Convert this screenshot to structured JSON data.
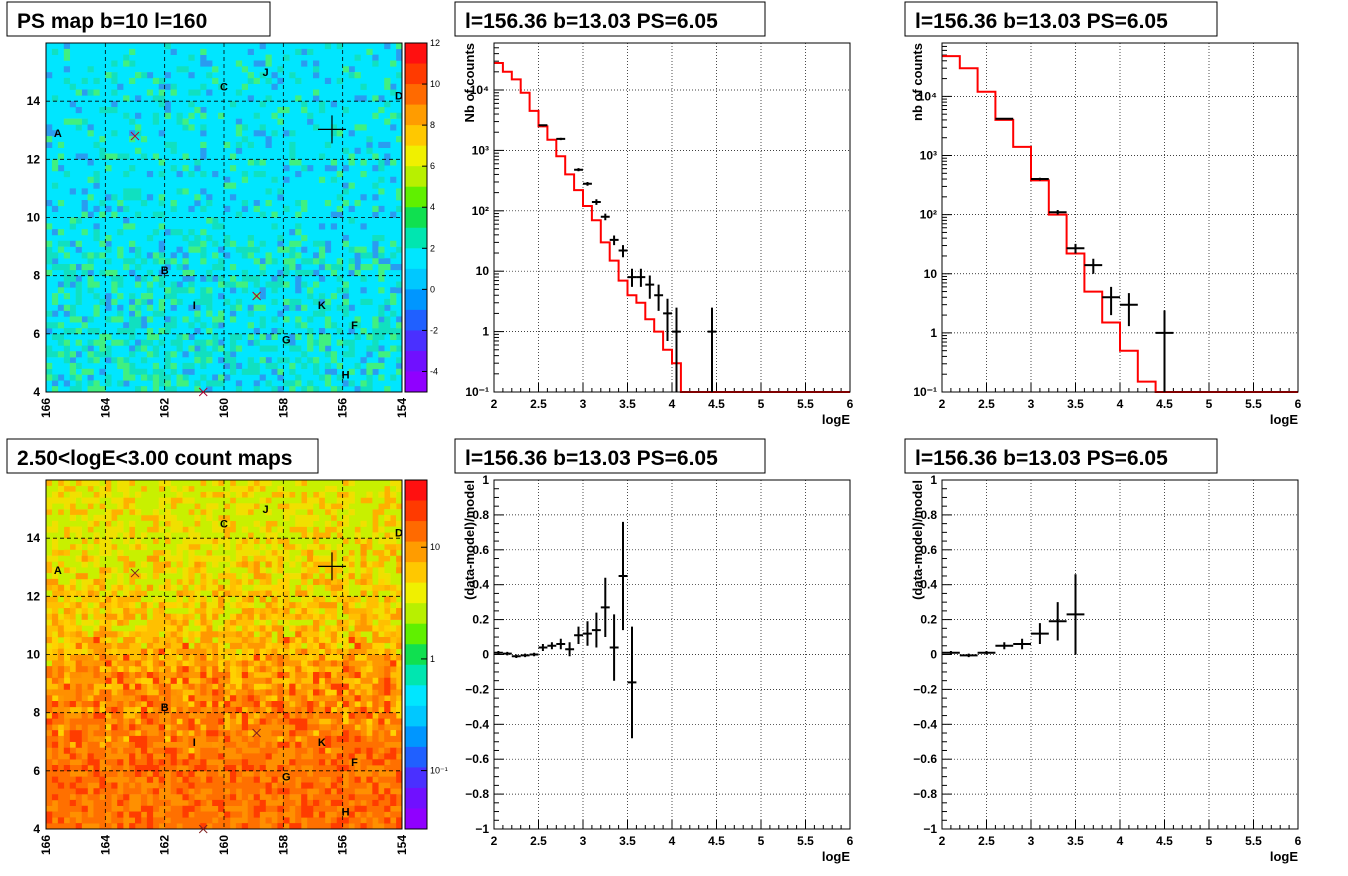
{
  "colors": {
    "model_line": "#ff0000",
    "data_points": "#000000",
    "grid": "#000000",
    "map_background": "#00e6ff",
    "count_map_background": "#ff8c00"
  },
  "chart_data": [
    {
      "type": "heatmap",
      "title": "PS map b=10 l=160",
      "xlim": [
        166,
        154
      ],
      "ylim": [
        4,
        16
      ],
      "xticks": [
        "166",
        "164",
        "162",
        "160",
        "158",
        "156",
        "154"
      ],
      "yticks": [
        "4",
        "6",
        "8",
        "10",
        "12",
        "14"
      ],
      "colorbar": {
        "min": -5,
        "max": 12,
        "ticks": [
          "12",
          "10",
          "8",
          "6",
          "4",
          "2",
          "0",
          "-2",
          "-4"
        ]
      },
      "source_labels": [
        {
          "label": "A",
          "l": 165.6,
          "b": 12.9
        },
        {
          "label": "C",
          "l": 160.0,
          "b": 14.5
        },
        {
          "label": "J",
          "l": 158.6,
          "b": 15.0
        },
        {
          "label": "D",
          "l": 154.1,
          "b": 14.2
        },
        {
          "label": "B",
          "l": 162.0,
          "b": 8.2
        },
        {
          "label": "I",
          "l": 161.0,
          "b": 7.0
        },
        {
          "label": "K",
          "l": 156.7,
          "b": 7.0
        },
        {
          "label": "F",
          "l": 155.6,
          "b": 6.3
        },
        {
          "label": "G",
          "l": 157.9,
          "b": 5.8
        },
        {
          "label": "H",
          "l": 155.9,
          "b": 4.6
        }
      ],
      "x_markers": [
        {
          "l": 163.0,
          "b": 12.8
        },
        {
          "l": 158.9,
          "b": 7.3
        },
        {
          "l": 160.7,
          "b": 4.0
        }
      ],
      "target": {
        "l": 156.36,
        "b": 13.03
      }
    },
    {
      "type": "line",
      "title": "l=156.36 b=13.03 PS=6.05",
      "xlabel": "logE",
      "ylabel": "Nb of counts",
      "xlim": [
        2,
        6
      ],
      "ylim": [
        0.1,
        60000
      ],
      "yscale": "log",
      "xticks": [
        "2",
        "2.5",
        "3",
        "3.5",
        "4",
        "4.5",
        "5",
        "5.5",
        "6"
      ],
      "yticks": [
        {
          "v": 0.1,
          "t": "10⁻¹"
        },
        {
          "v": 1,
          "t": "1"
        },
        {
          "v": 10,
          "t": "10"
        },
        {
          "v": 100,
          "t": "10²"
        },
        {
          "v": 1000,
          "t": "10³"
        },
        {
          "v": 10000,
          "t": "10⁴"
        }
      ],
      "grid": true,
      "model_edges": [
        2.0,
        2.1,
        2.2,
        2.3,
        2.4,
        2.5,
        2.6,
        2.7,
        2.8,
        2.9,
        3.0,
        3.1,
        3.2,
        3.3,
        3.4,
        3.5,
        3.6,
        3.7,
        3.8,
        3.9,
        4.0,
        4.1,
        4.2,
        6.0
      ],
      "model_values": [
        28000,
        20000,
        15000,
        9000,
        4500,
        2500,
        1500,
        800,
        400,
        220,
        120,
        70,
        30,
        15,
        7,
        4,
        3,
        1.6,
        1.0,
        0.5,
        0.3,
        0.1,
        0.1
      ],
      "points": [
        {
          "x": 2.55,
          "y": 2600,
          "xerr": 0.05,
          "ylo": 2500,
          "yhi": 2700
        },
        {
          "x": 2.75,
          "y": 1550,
          "xerr": 0.05,
          "ylo": 1480,
          "yhi": 1620
        },
        {
          "x": 2.95,
          "y": 480,
          "xerr": 0.05,
          "ylo": 450,
          "yhi": 510
        },
        {
          "x": 3.05,
          "y": 280,
          "xerr": 0.05,
          "ylo": 260,
          "yhi": 300
        },
        {
          "x": 3.15,
          "y": 140,
          "xerr": 0.05,
          "ylo": 125,
          "yhi": 155
        },
        {
          "x": 3.25,
          "y": 80,
          "xerr": 0.05,
          "ylo": 70,
          "yhi": 90
        },
        {
          "x": 3.35,
          "y": 33,
          "xerr": 0.05,
          "ylo": 27,
          "yhi": 39
        },
        {
          "x": 3.45,
          "y": 22,
          "xerr": 0.05,
          "ylo": 17,
          "yhi": 27
        },
        {
          "x": 3.55,
          "y": 8,
          "xerr": 0.05,
          "ylo": 5.5,
          "yhi": 11
        },
        {
          "x": 3.65,
          "y": 8,
          "xerr": 0.05,
          "ylo": 5.5,
          "yhi": 11
        },
        {
          "x": 3.75,
          "y": 6,
          "xerr": 0.05,
          "ylo": 3.5,
          "yhi": 8.5
        },
        {
          "x": 3.85,
          "y": 4,
          "xerr": 0.05,
          "ylo": 2.2,
          "yhi": 6
        },
        {
          "x": 3.95,
          "y": 2,
          "xerr": 0.05,
          "ylo": 0.7,
          "yhi": 3.5
        },
        {
          "x": 4.05,
          "y": 1,
          "xerr": 0.05,
          "ylo": 0.1,
          "yhi": 2.5
        },
        {
          "x": 4.45,
          "y": 1,
          "xerr": 0.05,
          "ylo": 0.1,
          "yhi": 2.5
        }
      ]
    },
    {
      "type": "line",
      "title": "l=156.36 b=13.03 PS=6.05",
      "xlabel": "logE",
      "ylabel": "nb of counts",
      "xlim": [
        2,
        6
      ],
      "ylim": [
        0.1,
        80000
      ],
      "yscale": "log",
      "xticks": [
        "2",
        "2.5",
        "3",
        "3.5",
        "4",
        "4.5",
        "5",
        "5.5",
        "6"
      ],
      "yticks": [
        {
          "v": 0.1,
          "t": "10⁻¹"
        },
        {
          "v": 1,
          "t": "1"
        },
        {
          "v": 10,
          "t": "10"
        },
        {
          "v": 100,
          "t": "10²"
        },
        {
          "v": 1000,
          "t": "10³"
        },
        {
          "v": 10000,
          "t": "10⁴"
        }
      ],
      "grid": true,
      "model_edges": [
        2.0,
        2.2,
        2.4,
        2.6,
        2.8,
        3.0,
        3.2,
        3.4,
        3.6,
        3.8,
        4.0,
        4.2,
        4.4,
        4.6,
        6.0
      ],
      "model_values": [
        48000,
        30000,
        12000,
        4000,
        1400,
        380,
        100,
        22,
        5,
        1.5,
        0.5,
        0.15,
        0.1,
        0.1
      ],
      "points": [
        {
          "x": 2.7,
          "y": 4200,
          "xerr": 0.1,
          "ylo": 4050,
          "yhi": 4350
        },
        {
          "x": 3.1,
          "y": 400,
          "xerr": 0.1,
          "ylo": 380,
          "yhi": 420
        },
        {
          "x": 3.3,
          "y": 110,
          "xerr": 0.1,
          "ylo": 100,
          "yhi": 120
        },
        {
          "x": 3.5,
          "y": 27,
          "xerr": 0.1,
          "ylo": 22,
          "yhi": 32
        },
        {
          "x": 3.7,
          "y": 14,
          "xerr": 0.1,
          "ylo": 10,
          "yhi": 18
        },
        {
          "x": 3.9,
          "y": 4,
          "xerr": 0.1,
          "ylo": 2,
          "yhi": 6
        },
        {
          "x": 4.1,
          "y": 3,
          "xerr": 0.1,
          "ylo": 1.3,
          "yhi": 4.7
        },
        {
          "x": 4.5,
          "y": 1,
          "xerr": 0.1,
          "ylo": 0.1,
          "yhi": 2.4
        }
      ]
    },
    {
      "type": "heatmap",
      "title": "2.50<logE<3.00 count maps",
      "xlim": [
        166,
        154
      ],
      "ylim": [
        4,
        16
      ],
      "xticks": [
        "166",
        "164",
        "162",
        "160",
        "158",
        "156",
        "154"
      ],
      "yticks": [
        "4",
        "6",
        "8",
        "10",
        "12",
        "14"
      ],
      "colorbar": {
        "scale": "log",
        "ticks": [
          {
            "v": 10,
            "t": "10"
          },
          {
            "v": 1,
            "t": "1"
          },
          {
            "v": 0.1,
            "t": "10⁻¹"
          }
        ]
      },
      "source_labels": [
        {
          "label": "A",
          "l": 165.6,
          "b": 12.9
        },
        {
          "label": "C",
          "l": 160.0,
          "b": 14.5
        },
        {
          "label": "J",
          "l": 158.6,
          "b": 15.0
        },
        {
          "label": "D",
          "l": 154.1,
          "b": 14.2
        },
        {
          "label": "B",
          "l": 162.0,
          "b": 8.2
        },
        {
          "label": "I",
          "l": 161.0,
          "b": 7.0
        },
        {
          "label": "K",
          "l": 156.7,
          "b": 7.0
        },
        {
          "label": "F",
          "l": 155.6,
          "b": 6.3
        },
        {
          "label": "G",
          "l": 157.9,
          "b": 5.8
        },
        {
          "label": "H",
          "l": 155.9,
          "b": 4.6
        }
      ],
      "x_markers": [
        {
          "l": 163.0,
          "b": 12.8
        },
        {
          "l": 158.9,
          "b": 7.3
        },
        {
          "l": 160.7,
          "b": 4.0
        }
      ],
      "target": {
        "l": 156.36,
        "b": 13.03
      }
    },
    {
      "type": "scatter",
      "title": "l=156.36 b=13.03 PS=6.05",
      "xlabel": "logE",
      "ylabel": "(data-model)/model",
      "xlim": [
        2,
        6
      ],
      "ylim": [
        -1,
        1
      ],
      "xticks": [
        "2",
        "2.5",
        "3",
        "3.5",
        "4",
        "4.5",
        "5",
        "5.5",
        "6"
      ],
      "yticks": [
        "−1",
        "−0.8",
        "−0.6",
        "−0.4",
        "−0.2",
        "0",
        "0.2",
        "0.4",
        "0.6",
        "0.8",
        "1"
      ],
      "grid": true,
      "points": [
        {
          "x": 2.05,
          "y": 0.01,
          "xerr": 0.05,
          "ylo": 0.0,
          "yhi": 0.02
        },
        {
          "x": 2.15,
          "y": 0.005,
          "xerr": 0.05,
          "ylo": -0.005,
          "yhi": 0.015
        },
        {
          "x": 2.25,
          "y": -0.01,
          "xerr": 0.05,
          "ylo": -0.02,
          "yhi": 0.0
        },
        {
          "x": 2.35,
          "y": -0.005,
          "xerr": 0.05,
          "ylo": -0.015,
          "yhi": 0.005
        },
        {
          "x": 2.45,
          "y": 0.0,
          "xerr": 0.05,
          "ylo": -0.01,
          "yhi": 0.01
        },
        {
          "x": 2.55,
          "y": 0.04,
          "xerr": 0.05,
          "ylo": 0.02,
          "yhi": 0.06
        },
        {
          "x": 2.65,
          "y": 0.05,
          "xerr": 0.05,
          "ylo": 0.03,
          "yhi": 0.07
        },
        {
          "x": 2.75,
          "y": 0.06,
          "xerr": 0.05,
          "ylo": 0.03,
          "yhi": 0.09
        },
        {
          "x": 2.85,
          "y": 0.03,
          "xerr": 0.05,
          "ylo": -0.01,
          "yhi": 0.07
        },
        {
          "x": 2.95,
          "y": 0.11,
          "xerr": 0.05,
          "ylo": 0.06,
          "yhi": 0.16
        },
        {
          "x": 3.05,
          "y": 0.12,
          "xerr": 0.05,
          "ylo": 0.05,
          "yhi": 0.19
        },
        {
          "x": 3.15,
          "y": 0.14,
          "xerr": 0.05,
          "ylo": 0.04,
          "yhi": 0.24
        },
        {
          "x": 3.25,
          "y": 0.27,
          "xerr": 0.05,
          "ylo": 0.1,
          "yhi": 0.44
        },
        {
          "x": 3.35,
          "y": 0.04,
          "xerr": 0.05,
          "ylo": -0.15,
          "yhi": 0.23
        },
        {
          "x": 3.45,
          "y": 0.45,
          "xerr": 0.05,
          "ylo": 0.14,
          "yhi": 0.76
        },
        {
          "x": 3.55,
          "y": -0.16,
          "xerr": 0.05,
          "ylo": -0.48,
          "yhi": 0.16
        }
      ]
    },
    {
      "type": "scatter",
      "title": "l=156.36 b=13.03 PS=6.05",
      "xlabel": "logE",
      "ylabel": "(data-model)/model",
      "xlim": [
        2,
        6
      ],
      "ylim": [
        -1,
        1
      ],
      "xticks": [
        "2",
        "2.5",
        "3",
        "3.5",
        "4",
        "4.5",
        "5",
        "5.5",
        "6"
      ],
      "yticks": [
        "−1",
        "−0.8",
        "−0.6",
        "−0.4",
        "−0.2",
        "0",
        "0.2",
        "0.4",
        "0.6",
        "0.8",
        "1"
      ],
      "grid": true,
      "points": [
        {
          "x": 2.1,
          "y": 0.01,
          "xerr": 0.1,
          "ylo": 0.0,
          "yhi": 0.02
        },
        {
          "x": 2.3,
          "y": -0.005,
          "xerr": 0.1,
          "ylo": -0.015,
          "yhi": 0.005
        },
        {
          "x": 2.5,
          "y": 0.01,
          "xerr": 0.1,
          "ylo": 0.0,
          "yhi": 0.02
        },
        {
          "x": 2.7,
          "y": 0.05,
          "xerr": 0.1,
          "ylo": 0.03,
          "yhi": 0.07
        },
        {
          "x": 2.9,
          "y": 0.06,
          "xerr": 0.1,
          "ylo": 0.03,
          "yhi": 0.09
        },
        {
          "x": 3.1,
          "y": 0.12,
          "xerr": 0.1,
          "ylo": 0.06,
          "yhi": 0.18
        },
        {
          "x": 3.3,
          "y": 0.19,
          "xerr": 0.1,
          "ylo": 0.08,
          "yhi": 0.3
        },
        {
          "x": 3.5,
          "y": 0.23,
          "xerr": 0.1,
          "ylo": 0.0,
          "yhi": 0.46
        }
      ]
    }
  ]
}
